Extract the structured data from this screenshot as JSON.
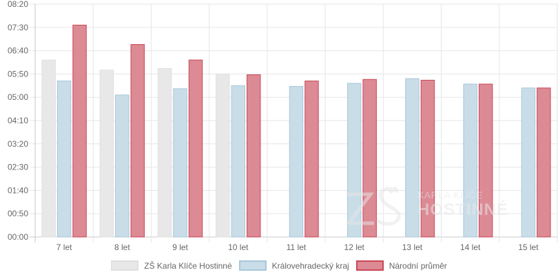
{
  "chart_data": {
    "type": "bar",
    "categories": [
      "7 let",
      "8 let",
      "9 let",
      "10 let",
      "11 let",
      "12 let",
      "13 let",
      "14 let",
      "15 let"
    ],
    "y_ticks": [
      "00:00",
      "00:50",
      "01:40",
      "02:30",
      "03:20",
      "04:10",
      "05:00",
      "05:50",
      "06:40",
      "07:30",
      "08:20"
    ],
    "ylim_seconds": [
      0,
      30000
    ],
    "y_unit": "mm:ss",
    "grid": true,
    "legend_position": "bottom",
    "series": [
      {
        "name": "ZŠ Karla Klíče Hostinné",
        "color": "#e8e8e8",
        "border": "#e0e0e0",
        "values": [
          22800,
          21500,
          21700,
          21000,
          null,
          null,
          null,
          null,
          null
        ]
      },
      {
        "name": "Královehradecký kraj",
        "color": "#c9dde8",
        "border": "#a9c6d8",
        "values": [
          20100,
          18300,
          19100,
          19500,
          19400,
          19800,
          20400,
          19700,
          19200
        ]
      },
      {
        "name": "Národní průměr",
        "color": "#dc8a94",
        "border": "#c94758",
        "values": [
          27300,
          24800,
          22800,
          20900,
          20100,
          20300,
          20200,
          19700,
          19200
        ]
      }
    ]
  },
  "watermark": {
    "line1": "KARLA KLÍČE",
    "line2": "HOSTINNÉ"
  }
}
